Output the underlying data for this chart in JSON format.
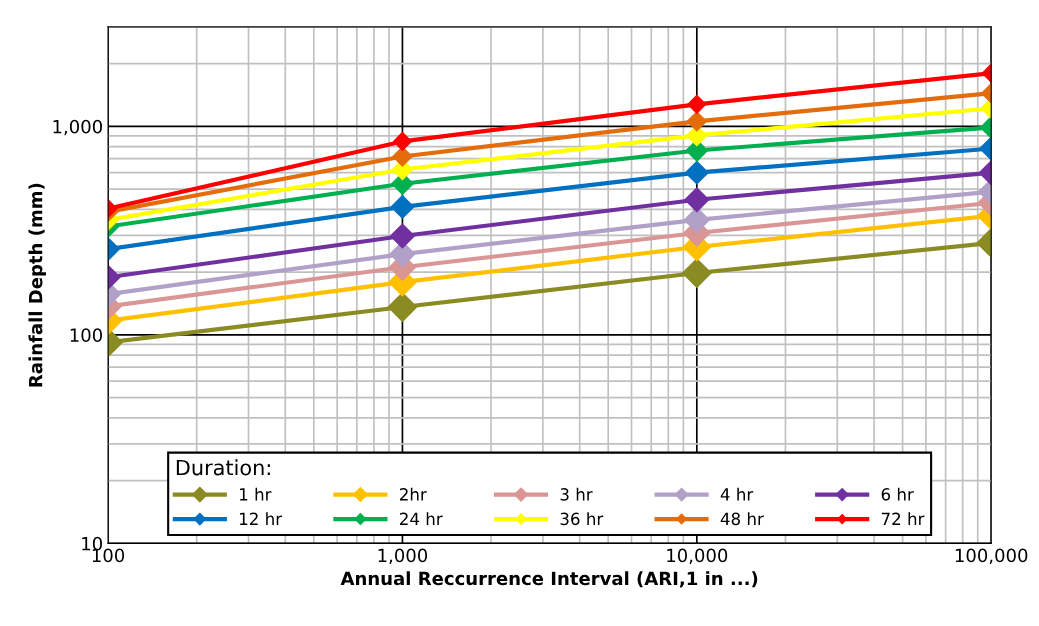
{
  "chart_data": {
    "type": "line",
    "xlabel": "Annual Reccurrence Interval (ARI,1 in ...)",
    "ylabel": "Rainfall Depth (mm)",
    "legend_title": "Duration:",
    "x": [
      100,
      1000,
      10000,
      100000
    ],
    "series": [
      {
        "name": "1 hr",
        "color": "#8b8b23",
        "values": [
          92,
          136,
          198,
          276
        ]
      },
      {
        "name": "2hr",
        "color": "#ffc000",
        "values": [
          117,
          179,
          264,
          373
        ]
      },
      {
        "name": "3 hr",
        "color": "#da9694",
        "values": [
          137,
          211,
          308,
          430
        ]
      },
      {
        "name": "4 hr",
        "color": "#b1a0c7",
        "values": [
          157,
          244,
          356,
          486
        ]
      },
      {
        "name": "6 hr",
        "color": "#7030a0",
        "values": [
          189,
          298,
          445,
          600
        ]
      },
      {
        "name": "12 hr",
        "color": "#0070c0",
        "values": [
          258,
          411,
          600,
          783
        ]
      },
      {
        "name": "24 hr",
        "color": "#00b050",
        "values": [
          331,
          531,
          766,
          989
        ]
      },
      {
        "name": "36 hr",
        "color": "#ffff00",
        "values": [
          356,
          621,
          905,
          1221
        ]
      },
      {
        "name": "48 hr",
        "color": "#e46c0a",
        "values": [
          389,
          717,
          1057,
          1442
        ]
      },
      {
        "name": "72 hr",
        "color": "#ff0000",
        "values": [
          403,
          847,
          1276,
          1800
        ]
      }
    ],
    "log": "xy",
    "xlim": [
      100,
      100000
    ],
    "ylim": [
      10,
      3000
    ],
    "xticks": [
      100,
      {
        "value": 1000,
        "label": "1,000"
      },
      {
        "value": 10000,
        "label": "10,000"
      },
      {
        "value": 100000,
        "label": "100,000"
      }
    ],
    "yticks": [
      10,
      100,
      {
        "value": 1000,
        "label": "1,000"
      }
    ],
    "grid": true,
    "legend": "bottom",
    "marker": "diamond",
    "line_style": "solid"
  }
}
